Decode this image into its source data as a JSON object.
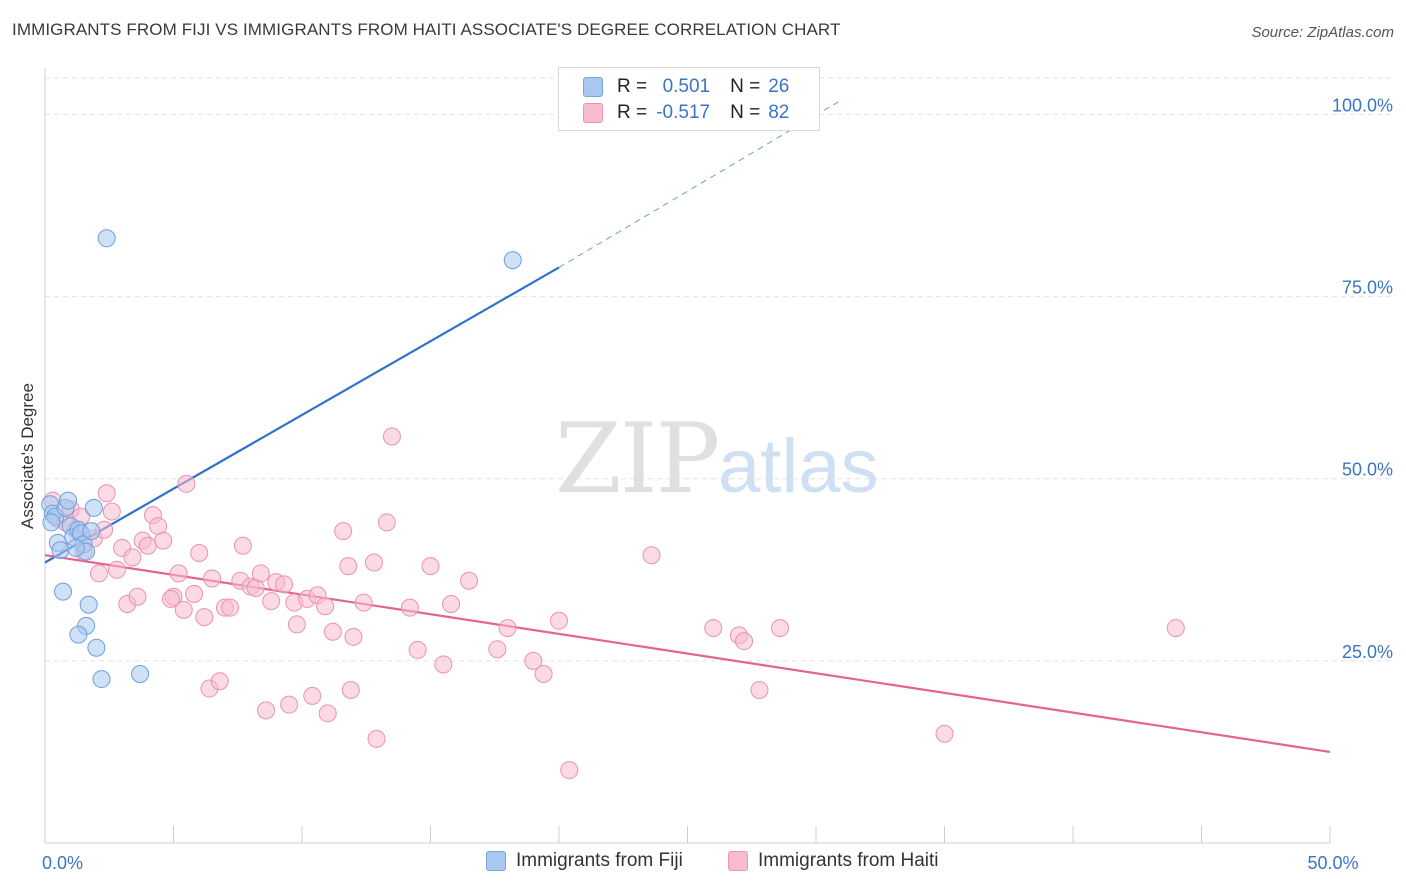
{
  "title": "IMMIGRANTS FROM FIJI VS IMMIGRANTS FROM HAITI ASSOCIATE'S DEGREE CORRELATION CHART",
  "source": "Source: ZipAtlas.com",
  "watermark": {
    "zip": "ZIP",
    "atlas": "atlas"
  },
  "legend": {
    "rows": [
      {
        "r_label": "R =",
        "r_value": "0.501",
        "n_label": "N =",
        "n_value": "26",
        "color": "#a8c8f0",
        "border": "#7aa6dc"
      },
      {
        "r_label": "R =",
        "r_value": "-0.517",
        "n_label": "N =",
        "n_value": "82",
        "color": "#f7bcd0",
        "border": "#eb95b4"
      }
    ]
  },
  "bottom_legend": [
    {
      "label": "Immigrants from Fiji",
      "color": "#a8c8f0",
      "border": "#7aa6dc"
    },
    {
      "label": "Immigrants from Haiti",
      "color": "#f7bcd0",
      "border": "#eb95b4"
    }
  ],
  "chart_data": {
    "type": "scatter",
    "title": "IMMIGRANTS FROM FIJI VS IMMIGRANTS FROM HAITI ASSOCIATE'S DEGREE CORRELATION CHART",
    "xlabel": "",
    "ylabel": "Associate's Degree",
    "xlim": [
      0,
      50
    ],
    "ylim": [
      0,
      105
    ],
    "x_tick_labels": [
      {
        "value": 0,
        "label": "0.0%"
      },
      {
        "value": 50,
        "label": "50.0%"
      }
    ],
    "x_minor_ticks": [
      5,
      10,
      15,
      20,
      25,
      30,
      35,
      40,
      45,
      50
    ],
    "y_ticks": [
      {
        "value": 25,
        "label": "25.0%"
      },
      {
        "value": 50,
        "label": "50.0%"
      },
      {
        "value": 75,
        "label": "75.0%"
      },
      {
        "value": 100,
        "label": "100.0%"
      }
    ],
    "grid": true,
    "legend_position": "top-center",
    "series": [
      {
        "name": "Immigrants from Fiji",
        "fill": "#a8c8f0",
        "stroke": "#6e9fdc",
        "trend_color": "#2f72c9",
        "trend": {
          "x0": 0,
          "y0": 38.5,
          "x1": 20,
          "y1": 79,
          "dash_to_x": 31,
          "dash_to_y": 102
        },
        "points": [
          [
            0.2,
            46.5
          ],
          [
            0.3,
            45.2
          ],
          [
            0.4,
            44.8
          ],
          [
            0.5,
            41.2
          ],
          [
            0.6,
            40.2
          ],
          [
            0.8,
            46.0
          ],
          [
            0.9,
            47.0
          ],
          [
            1.0,
            43.5
          ],
          [
            1.1,
            42.0
          ],
          [
            1.3,
            43.0
          ],
          [
            1.4,
            42.5
          ],
          [
            1.5,
            41.0
          ],
          [
            1.6,
            40.0
          ],
          [
            1.8,
            42.8
          ],
          [
            1.9,
            46.0
          ],
          [
            0.7,
            34.5
          ],
          [
            1.7,
            32.7
          ],
          [
            1.6,
            29.8
          ],
          [
            1.3,
            28.6
          ],
          [
            2.0,
            26.8
          ],
          [
            2.2,
            22.5
          ],
          [
            3.7,
            23.2
          ],
          [
            2.4,
            83.0
          ],
          [
            18.2,
            80.0
          ],
          [
            0.25,
            44.0
          ],
          [
            1.2,
            40.5
          ]
        ]
      },
      {
        "name": "Immigrants from Haiti",
        "fill": "#f7bcd0",
        "stroke": "#ea92b2",
        "trend_color": "#e3648f",
        "trend": {
          "x0": 0,
          "y0": 39.5,
          "x1": 50,
          "y1": 12.5
        },
        "points": [
          [
            0.3,
            47.0
          ],
          [
            0.5,
            44.5
          ],
          [
            0.8,
            44.0
          ],
          [
            1.0,
            45.8
          ],
          [
            1.2,
            43.0
          ],
          [
            1.5,
            40.0
          ],
          [
            1.9,
            41.8
          ],
          [
            2.1,
            37.0
          ],
          [
            2.4,
            48.0
          ],
          [
            2.6,
            45.5
          ],
          [
            2.8,
            37.5
          ],
          [
            3.0,
            40.5
          ],
          [
            3.2,
            32.8
          ],
          [
            3.4,
            39.2
          ],
          [
            3.8,
            41.5
          ],
          [
            4.0,
            40.8
          ],
          [
            4.2,
            45.0
          ],
          [
            4.4,
            43.5
          ],
          [
            4.6,
            41.5
          ],
          [
            5.0,
            33.8
          ],
          [
            5.2,
            37.0
          ],
          [
            5.4,
            32.0
          ],
          [
            5.5,
            49.3
          ],
          [
            5.8,
            34.2
          ],
          [
            6.0,
            39.8
          ],
          [
            6.2,
            31.0
          ],
          [
            6.5,
            36.3
          ],
          [
            7.0,
            32.3
          ],
          [
            7.2,
            32.3
          ],
          [
            7.6,
            36.0
          ],
          [
            7.7,
            40.8
          ],
          [
            8.0,
            35.2
          ],
          [
            8.2,
            35.0
          ],
          [
            8.4,
            37.0
          ],
          [
            8.8,
            33.2
          ],
          [
            9.0,
            35.8
          ],
          [
            9.3,
            35.5
          ],
          [
            9.7,
            33.0
          ],
          [
            9.8,
            30.0
          ],
          [
            10.2,
            33.5
          ],
          [
            10.6,
            34.0
          ],
          [
            10.9,
            32.5
          ],
          [
            11.2,
            29.0
          ],
          [
            11.6,
            42.8
          ],
          [
            11.8,
            38.0
          ],
          [
            12.0,
            28.3
          ],
          [
            12.4,
            33.0
          ],
          [
            12.8,
            38.5
          ],
          [
            13.3,
            44.0
          ],
          [
            13.5,
            55.8
          ],
          [
            14.2,
            32.3
          ],
          [
            14.5,
            26.5
          ],
          [
            15.0,
            38.0
          ],
          [
            15.8,
            32.8
          ],
          [
            16.5,
            36.0
          ],
          [
            17.6,
            26.6
          ],
          [
            18.0,
            29.5
          ],
          [
            19.0,
            25.0
          ],
          [
            19.4,
            23.2
          ],
          [
            20.0,
            30.5
          ],
          [
            23.6,
            39.5
          ],
          [
            26.0,
            29.5
          ],
          [
            27.0,
            28.5
          ],
          [
            27.2,
            27.7
          ],
          [
            28.6,
            29.5
          ],
          [
            27.8,
            21.0
          ],
          [
            35.0,
            15.0
          ],
          [
            44.0,
            29.5
          ],
          [
            6.4,
            21.2
          ],
          [
            6.8,
            22.2
          ],
          [
            8.6,
            18.2
          ],
          [
            9.5,
            19.0
          ],
          [
            10.4,
            20.2
          ],
          [
            11.0,
            17.8
          ],
          [
            11.9,
            21.0
          ],
          [
            12.9,
            14.3
          ],
          [
            15.5,
            24.5
          ],
          [
            20.4,
            10.0
          ],
          [
            2.3,
            43.0
          ],
          [
            3.6,
            33.8
          ],
          [
            4.9,
            33.5
          ],
          [
            1.4,
            44.8
          ]
        ]
      }
    ]
  }
}
